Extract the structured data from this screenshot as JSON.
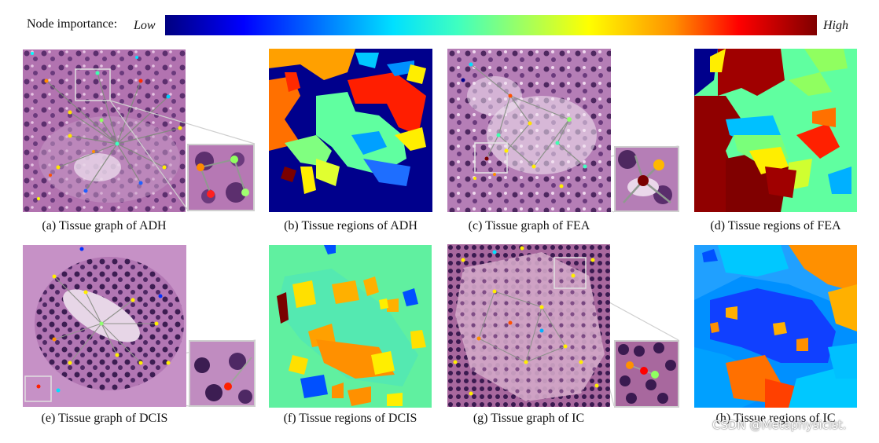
{
  "legend": {
    "label": "Node importance:",
    "low": "Low",
    "high": "High"
  },
  "panels": [
    {
      "caption": "(a) Tissue graph of ADH"
    },
    {
      "caption": "(b) Tissue regions of ADH"
    },
    {
      "caption": "(c) Tissue graph of FEA"
    },
    {
      "caption": "(d) Tissue regions of FEA"
    },
    {
      "caption": "(e) Tissue graph of DCIS"
    },
    {
      "caption": "(f) Tissue regions of DCIS"
    },
    {
      "caption": "(g) Tissue graph of IC"
    },
    {
      "caption": "(h) Tissue regions of IC"
    }
  ],
  "watermark": "CSDN @Metaphysicist."
}
